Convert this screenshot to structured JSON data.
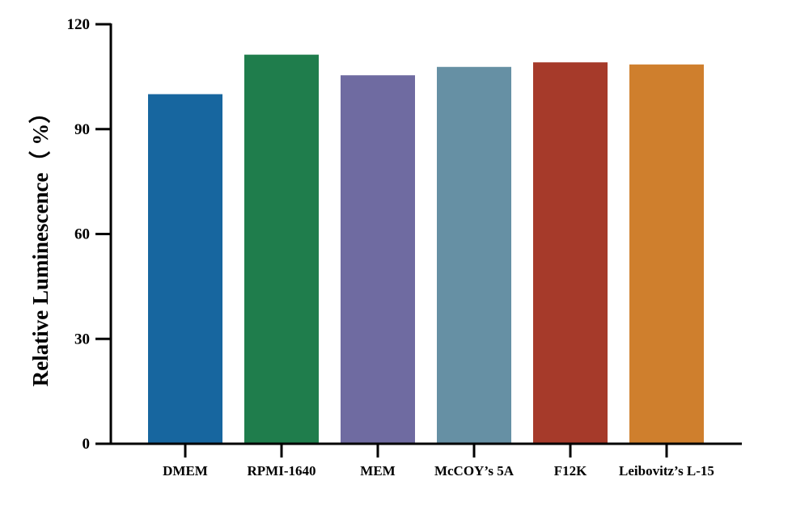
{
  "chart_data": {
    "type": "bar",
    "title": "",
    "xlabel": "",
    "ylabel": "Relative Luminescence（ %）",
    "ylim": [
      0,
      120
    ],
    "yticks": [
      0,
      30,
      60,
      90,
      120
    ],
    "grid": false,
    "legend": "none",
    "categories": [
      "DMEM",
      "RPMI-1640",
      "MEM",
      "McCOY’s 5A",
      "F12K",
      "Leibovitz’s L-15"
    ],
    "values": [
      100,
      111.3,
      105.4,
      107.8,
      109.1,
      108.5
    ],
    "colors": [
      "#17669F",
      "#1F7D4C",
      "#6F6BA1",
      "#6690A4",
      "#A63A2A",
      "#CF7F2D"
    ]
  }
}
